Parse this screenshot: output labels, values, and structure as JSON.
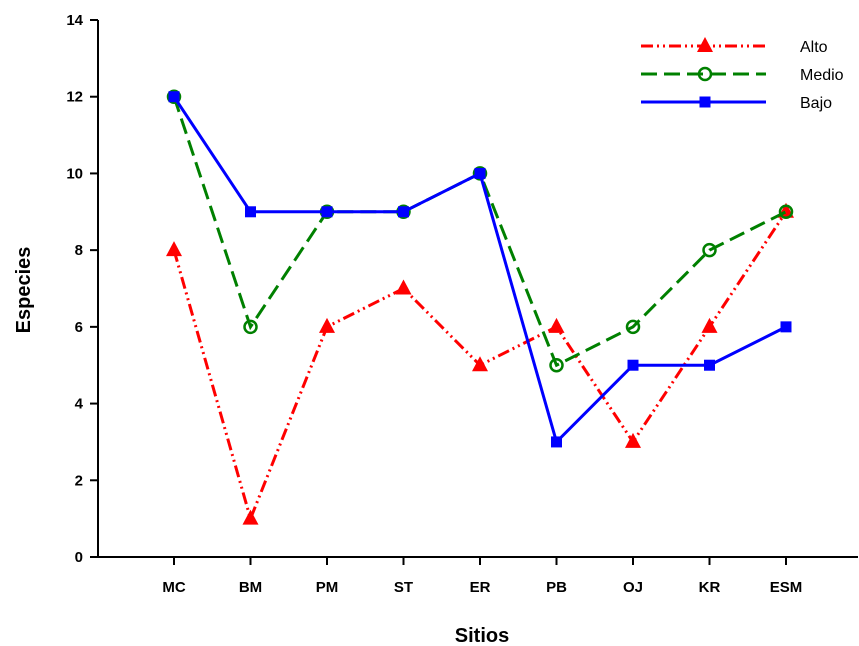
{
  "chart_data": {
    "type": "line",
    "title": "",
    "xlabel": "Sitios",
    "ylabel": "Especies",
    "categories": [
      "MC",
      "BM",
      "PM",
      "ST",
      "ER",
      "PB",
      "OJ",
      "KR",
      "ESM"
    ],
    "ylim": [
      0,
      14
    ],
    "yticks": [
      "0",
      "2",
      "4",
      "6",
      "8",
      "10",
      "12",
      "14"
    ],
    "grid": false,
    "legend_position": "top-right",
    "series": [
      {
        "name": "Alto",
        "values": [
          8,
          1,
          6,
          7,
          5,
          6,
          3,
          6,
          9
        ],
        "color": "#ff0000",
        "marker": "triangle",
        "line_style": "dash-dot-dot"
      },
      {
        "name": "Medio",
        "values": [
          12,
          6,
          9,
          9,
          10,
          5,
          6,
          8,
          9
        ],
        "color": "#008000",
        "marker": "open-circle",
        "line_style": "long-dash"
      },
      {
        "name": "Bajo",
        "values": [
          12,
          9,
          9,
          9,
          10,
          3,
          5,
          5,
          6
        ],
        "color": "#0000ff",
        "marker": "square",
        "line_style": "solid"
      }
    ]
  }
}
